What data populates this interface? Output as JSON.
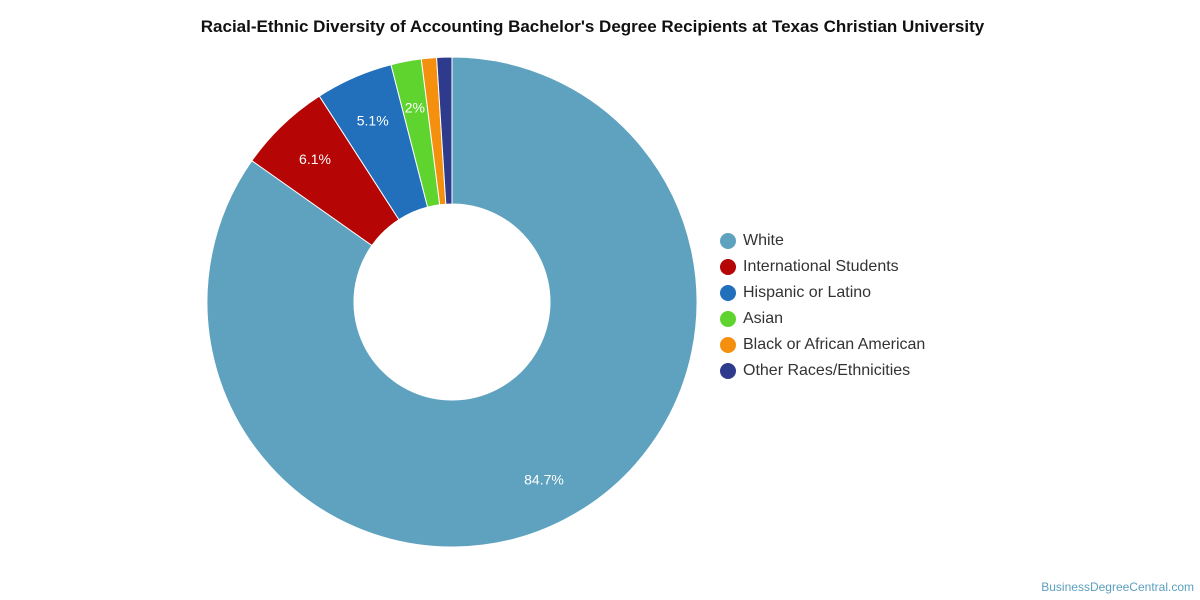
{
  "chart_data": {
    "type": "pie",
    "style": "donut",
    "title": "Racial-Ethnic Diversity of Accounting Bachelor's Degree Recipients at Texas Christian University",
    "series": [
      {
        "name": "White",
        "value": 84.7,
        "label": "84.7%",
        "color": "#5fa2bf"
      },
      {
        "name": "International Students",
        "value": 6.1,
        "label": "6.1%",
        "color": "#b50505"
      },
      {
        "name": "Hispanic or Latino",
        "value": 5.1,
        "label": "5.1%",
        "color": "#2270bb"
      },
      {
        "name": "Asian",
        "value": 2.0,
        "label": "2%",
        "color": "#5fd32e"
      },
      {
        "name": "Black or African American",
        "value": 1.0,
        "label": "",
        "color": "#f5900f"
      },
      {
        "name": "Other Races/Ethnicities",
        "value": 1.0,
        "label": "",
        "color": "#2e3a8c"
      }
    ],
    "legend_position": "right"
  },
  "credit": "BusinessDegreeCentral.com"
}
